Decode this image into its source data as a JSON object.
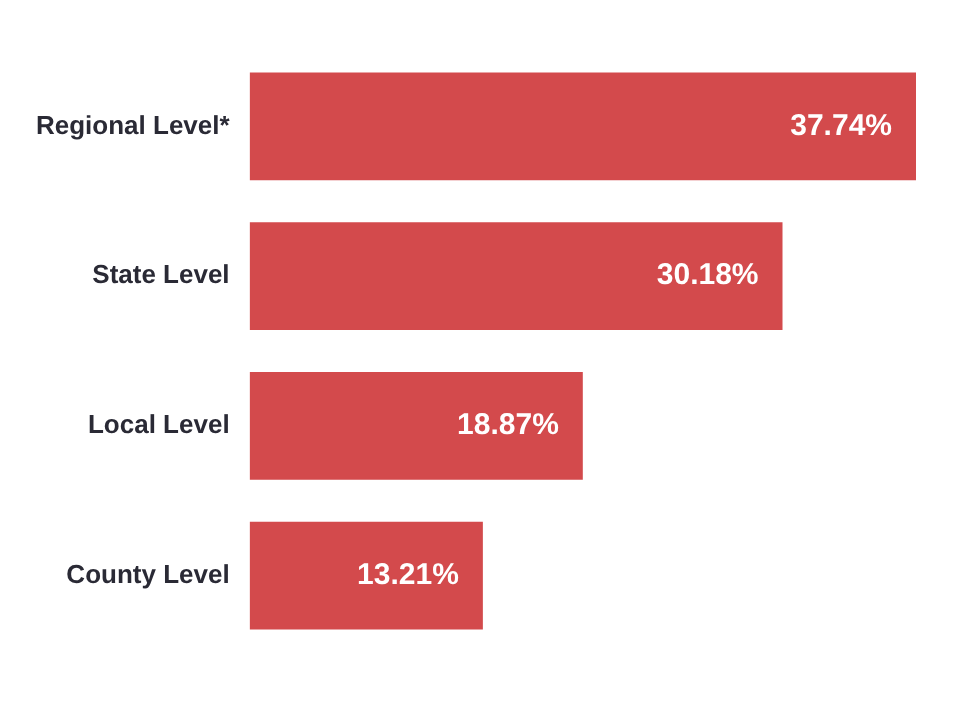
{
  "chart_data": {
    "type": "bar",
    "orientation": "horizontal",
    "categories": [
      "Regional Level*",
      "State Level",
      "Local Level",
      "County Level"
    ],
    "values": [
      37.74,
      30.18,
      18.87,
      13.21
    ],
    "value_labels": [
      "37.74%",
      "30.18%",
      "18.87%",
      "13.21%"
    ],
    "color": "#d34a4c",
    "grid": false,
    "legend": false
  }
}
